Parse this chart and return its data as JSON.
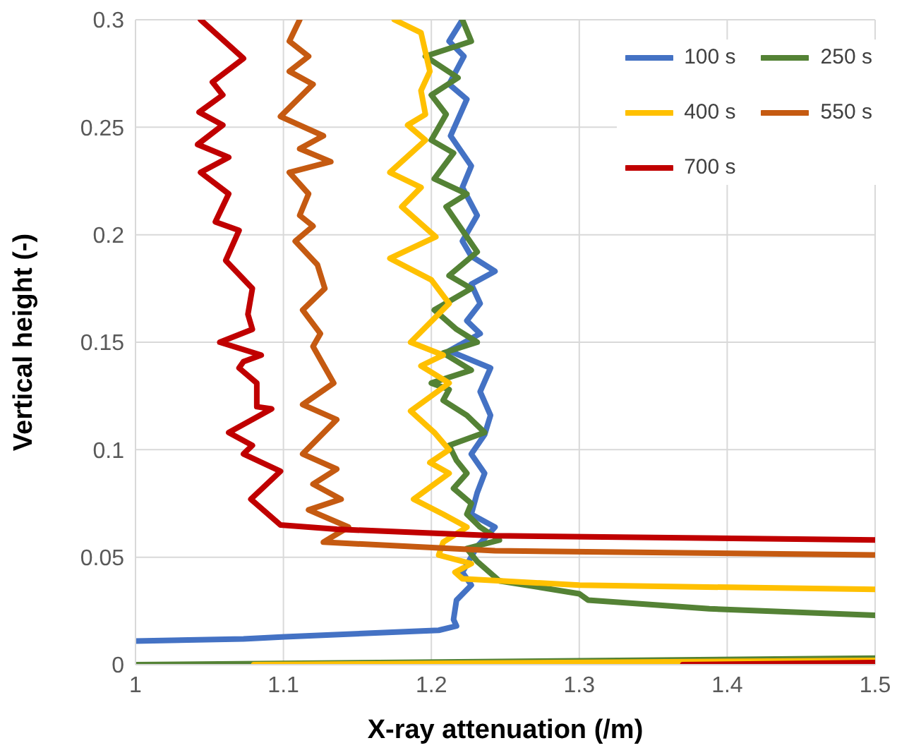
{
  "chart_data": {
    "type": "line",
    "xlabel": "X-ray attenuation (/m)",
    "ylabel": "Vertical height (-)",
    "xlim": [
      1,
      1.5
    ],
    "ylim": [
      0,
      0.3
    ],
    "xticks": [
      1,
      1.1,
      1.2,
      1.3,
      1.4,
      1.5
    ],
    "yticks": [
      0,
      0.05,
      0.1,
      0.15,
      0.2,
      0.25,
      0.3
    ],
    "grid": true,
    "legend": "top right",
    "marker": "none",
    "line_style": "solid",
    "series": [
      {
        "name": "100 s",
        "color": "#4472c4",
        "x": [
          1.0,
          1.073,
          1.101,
          1.205,
          1.217,
          1.215,
          1.217,
          1.227,
          1.221,
          1.231,
          1.243,
          1.227,
          1.231,
          1.236,
          1.227,
          1.236,
          1.24,
          1.233,
          1.24,
          1.212,
          1.233,
          1.224,
          1.233,
          1.227,
          1.243,
          1.227,
          1.221,
          1.231,
          1.221,
          1.227,
          1.213,
          1.224,
          1.212,
          1.222,
          1.212,
          1.221
        ],
        "values": [
          0.011,
          0.012,
          0.013,
          0.016,
          0.018,
          0.021,
          0.03,
          0.037,
          0.043,
          0.055,
          0.064,
          0.07,
          0.08,
          0.089,
          0.098,
          0.107,
          0.116,
          0.127,
          0.138,
          0.146,
          0.154,
          0.16,
          0.168,
          0.177,
          0.183,
          0.19,
          0.197,
          0.209,
          0.222,
          0.232,
          0.246,
          0.263,
          0.27,
          0.283,
          0.29,
          0.3
        ]
      },
      {
        "name": "250 s",
        "color": "#548235",
        "x": [
          1.5,
          1.388,
          1.306,
          1.3,
          1.246,
          1.231,
          1.224,
          1.246,
          1.233,
          1.224,
          1.227,
          1.215,
          1.224,
          1.217,
          1.212,
          1.236,
          1.224,
          1.208,
          1.212,
          1.2,
          1.227,
          1.208,
          1.231,
          1.217,
          1.202,
          1.227,
          1.212,
          1.231,
          1.21,
          1.224,
          1.202,
          1.215,
          1.2,
          1.21,
          1.2,
          1.218,
          1.196,
          1.227,
          1.221
        ],
        "values": [
          0.023,
          0.026,
          0.03,
          0.033,
          0.039,
          0.048,
          0.054,
          0.058,
          0.064,
          0.07,
          0.075,
          0.082,
          0.089,
          0.095,
          0.102,
          0.108,
          0.116,
          0.123,
          0.128,
          0.131,
          0.137,
          0.145,
          0.15,
          0.156,
          0.165,
          0.175,
          0.181,
          0.192,
          0.213,
          0.219,
          0.226,
          0.238,
          0.244,
          0.256,
          0.265,
          0.273,
          0.283,
          0.29,
          0.3
        ]
      },
      {
        "name": "400 s",
        "color": "#ffc000",
        "x": [
          1.5,
          1.3,
          1.221,
          1.216,
          1.227,
          1.205,
          1.208,
          1.224,
          1.208,
          1.188,
          1.212,
          1.199,
          1.212,
          1.202,
          1.186,
          1.212,
          1.193,
          1.208,
          1.186,
          1.212,
          1.2,
          1.172,
          1.203,
          1.18,
          1.193,
          1.172,
          1.196,
          1.184,
          1.196,
          1.193,
          1.199,
          1.193,
          1.175
        ],
        "values": [
          0.035,
          0.037,
          0.04,
          0.043,
          0.047,
          0.051,
          0.057,
          0.064,
          0.07,
          0.077,
          0.089,
          0.094,
          0.1,
          0.108,
          0.118,
          0.131,
          0.139,
          0.144,
          0.15,
          0.168,
          0.179,
          0.189,
          0.199,
          0.213,
          0.222,
          0.229,
          0.244,
          0.251,
          0.256,
          0.267,
          0.276,
          0.294,
          0.3
        ]
      },
      {
        "name": "550 s",
        "color": "#c55a11",
        "x": [
          1.5,
          1.243,
          1.127,
          1.144,
          1.117,
          1.139,
          1.12,
          1.136,
          1.113,
          1.136,
          1.113,
          1.134,
          1.12,
          1.125,
          1.113,
          1.128,
          1.123,
          1.108,
          1.12,
          1.111,
          1.117,
          1.104,
          1.132,
          1.111,
          1.127,
          1.098,
          1.12,
          1.104,
          1.117,
          1.104,
          1.111
        ],
        "values": [
          0.051,
          0.053,
          0.057,
          0.064,
          0.072,
          0.077,
          0.084,
          0.091,
          0.098,
          0.114,
          0.121,
          0.131,
          0.148,
          0.154,
          0.165,
          0.175,
          0.186,
          0.197,
          0.204,
          0.209,
          0.219,
          0.229,
          0.234,
          0.24,
          0.246,
          0.255,
          0.27,
          0.276,
          0.283,
          0.29,
          0.3
        ]
      },
      {
        "name": "700 s",
        "color": "#c00000",
        "x": [
          1.5,
          1.243,
          1.136,
          1.098,
          1.078,
          1.098,
          1.073,
          1.079,
          1.063,
          1.092,
          1.082,
          1.082,
          1.07,
          1.073,
          1.085,
          1.057,
          1.079,
          1.076,
          1.079,
          1.061,
          1.07,
          1.054,
          1.063,
          1.044,
          1.063,
          1.042,
          1.059,
          1.043,
          1.059,
          1.052,
          1.073,
          1.044
        ],
        "values": [
          0.058,
          0.06,
          0.063,
          0.065,
          0.077,
          0.09,
          0.098,
          0.102,
          0.108,
          0.119,
          0.12,
          0.131,
          0.138,
          0.141,
          0.144,
          0.15,
          0.156,
          0.163,
          0.175,
          0.188,
          0.202,
          0.206,
          0.219,
          0.229,
          0.236,
          0.242,
          0.251,
          0.257,
          0.265,
          0.271,
          0.282,
          0.3
        ]
      },
      {
        "color": "#548235",
        "x": [
          1.0,
          1.5
        ],
        "values": [
          0.0,
          0.003
        ]
      },
      {
        "color": "#ffc000",
        "x": [
          1.08,
          1.5
        ],
        "values": [
          0.0,
          0.002
        ]
      },
      {
        "color": "#c00000",
        "x": [
          1.37,
          1.5
        ],
        "values": [
          0.0,
          0.001
        ]
      }
    ]
  }
}
